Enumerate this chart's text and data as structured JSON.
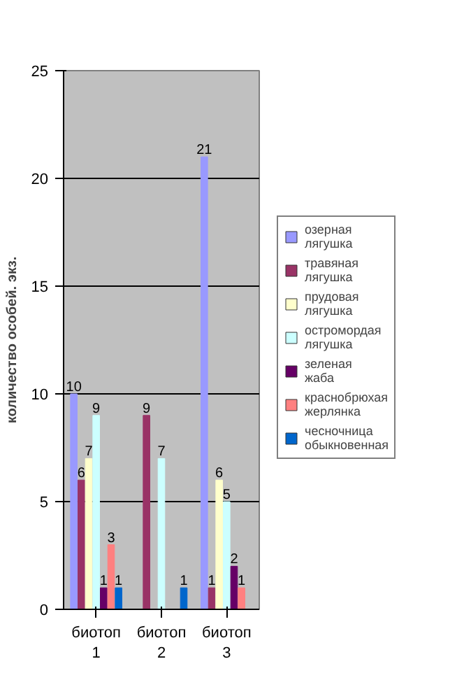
{
  "chart_data": {
    "type": "bar",
    "ylabel": "количество особей. экз.",
    "categories": [
      "биотоп 1",
      "биотоп 2",
      "биотоп 3"
    ],
    "ylim": [
      0,
      25
    ],
    "yticks": [
      0,
      5,
      10,
      15,
      20,
      25
    ],
    "grid": "y",
    "legend": "right",
    "series": [
      {
        "name": "озерная лягушка",
        "color": "#9999ff",
        "values": [
          10,
          0,
          21
        ],
        "value_labels": [
          "10",
          null,
          "21"
        ]
      },
      {
        "name": "травяная лягушка",
        "color": "#993366",
        "values": [
          6,
          9,
          1
        ],
        "value_labels": [
          "6",
          "9",
          "1"
        ]
      },
      {
        "name": "прудовая лягушка",
        "color": "#ffffcc",
        "values": [
          7,
          0,
          6
        ],
        "value_labels": [
          "7",
          null,
          "6"
        ]
      },
      {
        "name": "остромордая лягушка",
        "color": "#ccffff",
        "values": [
          9,
          7,
          5
        ],
        "value_labels": [
          "9",
          "7",
          "5"
        ]
      },
      {
        "name": "зеленая жаба",
        "color": "#660066",
        "values": [
          1,
          0,
          2
        ],
        "value_labels": [
          "1",
          null,
          "2"
        ]
      },
      {
        "name": "краснобрюхая жерлянка",
        "color": "#ff8080",
        "values": [
          3,
          0,
          1
        ],
        "value_labels": [
          "3",
          null,
          "1"
        ]
      },
      {
        "name": "чесночница обыкновенная",
        "color": "#0066cc",
        "values": [
          1,
          1,
          0
        ],
        "value_labels": [
          "1",
          "1",
          null
        ]
      }
    ]
  }
}
